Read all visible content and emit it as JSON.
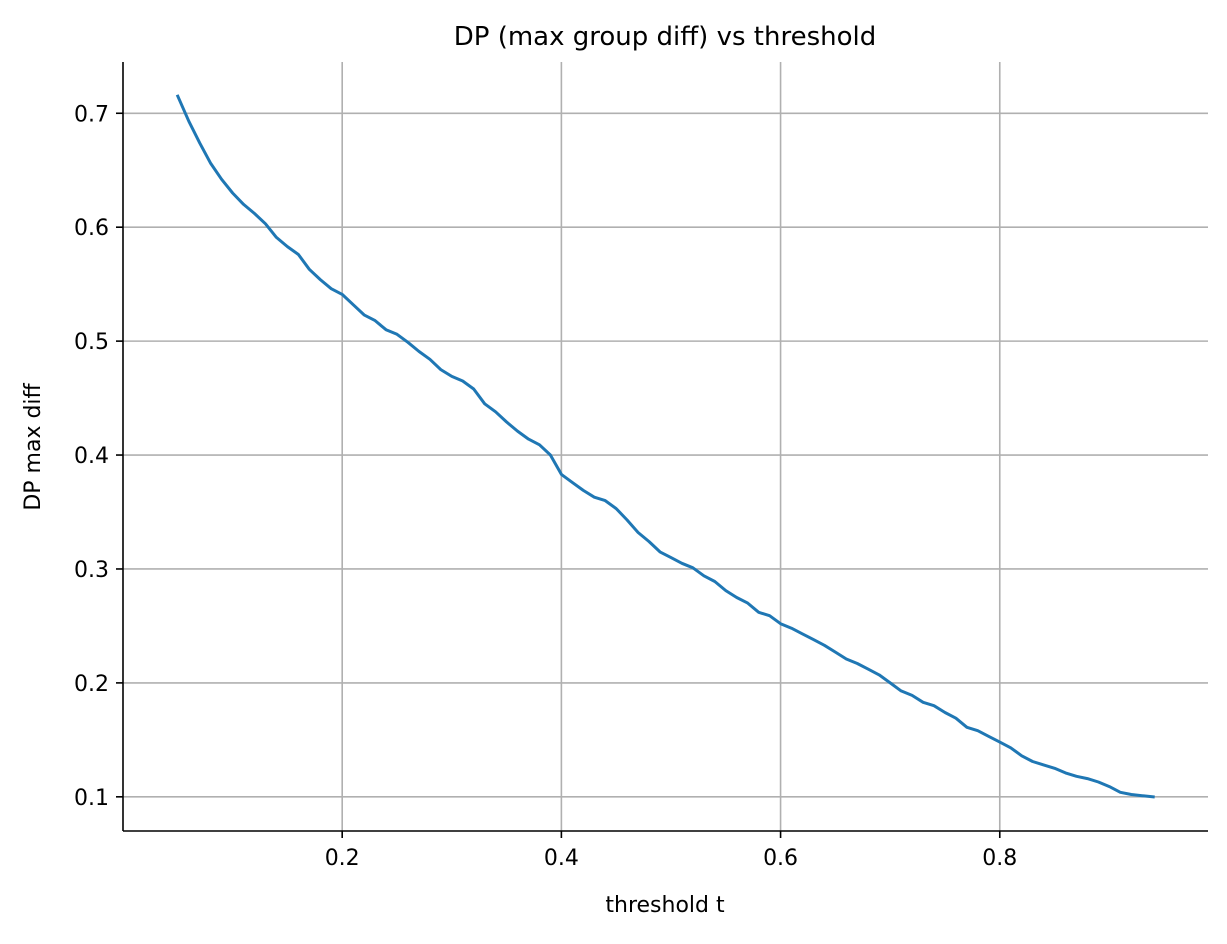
{
  "chart_data": {
    "type": "line",
    "title": "DP (max group diff) vs threshold",
    "xlabel": "threshold t",
    "ylabel": "DP max diff",
    "xlim": [
      0.0,
      0.99
    ],
    "ylim": [
      0.07,
      0.745
    ],
    "xticks": [
      0.2,
      0.4,
      0.6,
      0.8
    ],
    "xtick_labels": [
      "0.2",
      "0.4",
      "0.6",
      "0.8"
    ],
    "yticks": [
      0.1,
      0.2,
      0.3,
      0.4,
      0.5,
      0.6,
      0.7
    ],
    "ytick_labels": [
      "0.1",
      "0.2",
      "0.3",
      "0.4",
      "0.5",
      "0.6",
      "0.7"
    ],
    "grid": true,
    "colors": {
      "line": "#1f77b4",
      "grid": "#b0b0b0",
      "axis": "#000000"
    },
    "series": [
      {
        "x": [
          0.05,
          0.06,
          0.07,
          0.08,
          0.09,
          0.1,
          0.11,
          0.12,
          0.13,
          0.14,
          0.15,
          0.16,
          0.17,
          0.18,
          0.19,
          0.2,
          0.21,
          0.22,
          0.23,
          0.24,
          0.25,
          0.26,
          0.27,
          0.28,
          0.29,
          0.3,
          0.31,
          0.32,
          0.33,
          0.34,
          0.35,
          0.36,
          0.37,
          0.38,
          0.39,
          0.4,
          0.41,
          0.42,
          0.43,
          0.44,
          0.45,
          0.46,
          0.47,
          0.48,
          0.49,
          0.5,
          0.51,
          0.52,
          0.53,
          0.54,
          0.55,
          0.56,
          0.57,
          0.58,
          0.59,
          0.6,
          0.61,
          0.62,
          0.63,
          0.64,
          0.65,
          0.66,
          0.67,
          0.68,
          0.69,
          0.7,
          0.71,
          0.72,
          0.73,
          0.74,
          0.75,
          0.76,
          0.77,
          0.78,
          0.79,
          0.8,
          0.81,
          0.82,
          0.83,
          0.84,
          0.85,
          0.86,
          0.87,
          0.88,
          0.89,
          0.9,
          0.91,
          0.92,
          0.93,
          0.94
        ],
        "y": [
          0.715,
          0.693,
          0.674,
          0.656,
          0.642,
          0.63,
          0.62,
          0.612,
          0.603,
          0.591,
          0.583,
          0.576,
          0.563,
          0.554,
          0.546,
          0.541,
          0.532,
          0.523,
          0.518,
          0.51,
          0.506,
          0.499,
          0.491,
          0.484,
          0.475,
          0.469,
          0.465,
          0.458,
          0.445,
          0.438,
          0.429,
          0.421,
          0.414,
          0.409,
          0.4,
          0.383,
          0.376,
          0.369,
          0.363,
          0.36,
          0.353,
          0.343,
          0.332,
          0.324,
          0.315,
          0.31,
          0.305,
          0.301,
          0.294,
          0.289,
          0.281,
          0.275,
          0.27,
          0.262,
          0.259,
          0.252,
          0.248,
          0.243,
          0.238,
          0.233,
          0.227,
          0.221,
          0.217,
          0.212,
          0.207,
          0.2,
          0.193,
          0.189,
          0.183,
          0.18,
          0.174,
          0.169,
          0.161,
          0.158,
          0.153,
          0.148,
          0.143,
          0.136,
          0.131,
          0.128,
          0.125,
          0.121,
          0.118,
          0.116,
          0.113,
          0.109,
          0.104,
          0.102,
          0.101,
          0.1
        ]
      }
    ]
  }
}
